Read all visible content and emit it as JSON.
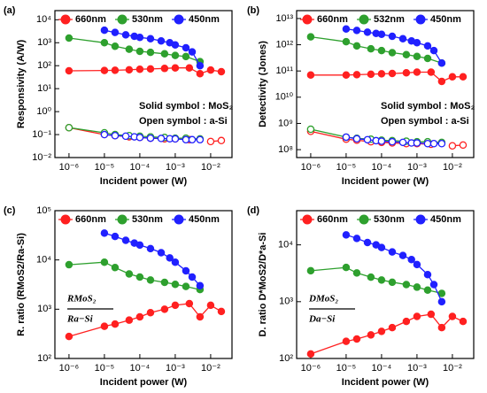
{
  "chart_data": [
    {
      "type": "line",
      "panel": "(a)",
      "y_label": "Responsivity (A/W)",
      "x_label": "Incident power (W)",
      "xscale": "log",
      "yscale": "log",
      "xlim": [
        4e-07,
        0.04
      ],
      "ylim": [
        0.01,
        25000.0
      ],
      "xticks": [
        {
          "value": 1e-06,
          "label": "10⁻⁶"
        },
        {
          "value": 1e-05,
          "label": "10⁻⁵"
        },
        {
          "value": 0.0001,
          "label": "10⁻⁴"
        },
        {
          "value": 0.001,
          "label": "10⁻³"
        },
        {
          "value": 0.01,
          "label": "10⁻²"
        }
      ],
      "yticks": [
        {
          "value": 0.01,
          "label": "10⁻²"
        },
        {
          "value": 0.1,
          "label": "10⁻¹"
        },
        {
          "value": 1,
          "label": "10⁰"
        },
        {
          "value": 10,
          "label": "10¹"
        },
        {
          "value": 100,
          "label": "10²"
        },
        {
          "value": 1000,
          "label": "10³"
        },
        {
          "value": 10000,
          "label": "10⁴"
        }
      ],
      "annotations": [
        "Solid symbol : MoS₂",
        "Open symbol : a-Si"
      ],
      "series": [
        {
          "name": "660nm",
          "color": "#ff2020",
          "x": [
            1e-06,
            1e-05,
            2e-05,
            5e-05,
            0.0001,
            0.0002,
            0.0005,
            0.001,
            0.0025,
            0.005,
            0.01,
            0.02
          ],
          "values": [
            60,
            62,
            63,
            66,
            70,
            72,
            76,
            80,
            80,
            45,
            65,
            55
          ],
          "asi_values": [
            0.2,
            0.1,
            0.09,
            0.08,
            0.075,
            0.07,
            0.065,
            0.065,
            0.06,
            null,
            0.05,
            0.055
          ]
        },
        {
          "name": "530nm",
          "color": "#2ea02e",
          "x": [
            1e-06,
            1e-05,
            2e-05,
            5e-05,
            0.0001,
            0.0002,
            0.0005,
            0.001,
            0.002,
            0.005
          ],
          "values": [
            1600,
            1000,
            700,
            520,
            420,
            380,
            330,
            280,
            250,
            150
          ],
          "asi_values": [
            0.2,
            0.12,
            0.1,
            0.09,
            0.085,
            0.08,
            0.075,
            0.07,
            0.07,
            0.065
          ]
        },
        {
          "name": "450nm",
          "color": "#2020ff",
          "x": [
            1e-05,
            2e-05,
            4e-05,
            7e-05,
            0.0001,
            0.0002,
            0.0004,
            0.0007,
            0.001,
            0.002,
            0.003,
            0.005
          ],
          "values": [
            3500,
            2800,
            2200,
            1900,
            1700,
            1500,
            1200,
            1000,
            800,
            600,
            400,
            100
          ],
          "asi_values": [
            0.1,
            0.09,
            0.085,
            0.08,
            0.075,
            0.07,
            0.068,
            0.066,
            0.065,
            0.06,
            0.06,
            0.06
          ]
        }
      ]
    },
    {
      "type": "line",
      "panel": "(b)",
      "y_label": "Detectivity (Jones)",
      "x_label": "Incident power (W)",
      "xscale": "log",
      "yscale": "log",
      "xlim": [
        4e-07,
        0.04
      ],
      "ylim": [
        50000000.0,
        20000000000000.0
      ],
      "xticks": [
        {
          "value": 1e-06,
          "label": "10⁻⁶"
        },
        {
          "value": 1e-05,
          "label": "10⁻⁵"
        },
        {
          "value": 0.0001,
          "label": "10⁻⁴"
        },
        {
          "value": 0.001,
          "label": "10⁻³"
        },
        {
          "value": 0.01,
          "label": "10⁻²"
        }
      ],
      "yticks": [
        {
          "value": 100000000.0,
          "label": "10⁸"
        },
        {
          "value": 1000000000.0,
          "label": "10⁹"
        },
        {
          "value": 10000000000.0,
          "label": "10¹⁰"
        },
        {
          "value": 100000000000.0,
          "label": "10¹¹"
        },
        {
          "value": 1000000000000.0,
          "label": "10¹²"
        },
        {
          "value": 10000000000000.0,
          "label": "10¹³"
        }
      ],
      "annotations": [
        "Solid symbol : MoS₂",
        "Open symbol : a-Si"
      ],
      "series": [
        {
          "name": "660nm",
          "color": "#ff2020",
          "x": [
            1e-06,
            1e-05,
            2e-05,
            5e-05,
            0.0001,
            0.0002,
            0.0005,
            0.001,
            0.0025,
            0.005,
            0.01,
            0.02
          ],
          "values": [
            70000000000.0,
            70000000000.0,
            72000000000.0,
            75000000000.0,
            78000000000.0,
            80000000000.0,
            85000000000.0,
            90000000000.0,
            90000000000.0,
            40000000000.0,
            60000000000.0,
            60000000000.0
          ],
          "asi_values": [
            500000000.0,
            250000000.0,
            230000000.0,
            200000000.0,
            190000000.0,
            180000000.0,
            170000000.0,
            170000000.0,
            160000000.0,
            null,
            140000000.0,
            150000000.0
          ]
        },
        {
          "name": "532nm",
          "color": "#2ea02e",
          "x": [
            1e-06,
            1e-05,
            2e-05,
            5e-05,
            0.0001,
            0.0002,
            0.0005,
            0.001,
            0.002,
            0.005
          ],
          "values": [
            2000000000000.0,
            1300000000000.0,
            900000000000.0,
            700000000000.0,
            600000000000.0,
            500000000000.0,
            420000000000.0,
            360000000000.0,
            300000000000.0,
            200000000000.0
          ],
          "asi_values": [
            600000000.0,
            300000000.0,
            270000000.0,
            250000000.0,
            230000000.0,
            220000000.0,
            210000000.0,
            200000000.0,
            200000000.0,
            190000000.0
          ]
        },
        {
          "name": "450nm",
          "color": "#2020ff",
          "x": [
            1e-05,
            2e-05,
            4e-05,
            7e-05,
            0.0001,
            0.0002,
            0.0004,
            0.0007,
            0.001,
            0.002,
            0.003,
            0.005
          ],
          "values": [
            4000000000000.0,
            3500000000000.0,
            3000000000000.0,
            2700000000000.0,
            2500000000000.0,
            2100000000000.0,
            1700000000000.0,
            1400000000000.0,
            1200000000000.0,
            900000000000.0,
            600000000000.0,
            200000000000.0
          ],
          "asi_values": [
            300000000.0,
            260000000.0,
            240000000.0,
            220000000.0,
            210000000.0,
            200000000.0,
            190000000.0,
            180000000.0,
            180000000.0,
            170000000.0,
            170000000.0,
            170000000.0
          ]
        }
      ]
    },
    {
      "type": "line",
      "panel": "(c)",
      "y_label": "R. ratio (RMoS2/Ra-Si)",
      "x_label": "Incident power (W)",
      "xscale": "log",
      "yscale": "log",
      "xlim": [
        4e-07,
        0.04
      ],
      "ylim": [
        100,
        100000.0
      ],
      "xticks": [
        {
          "value": 1e-06,
          "label": "10⁻⁶"
        },
        {
          "value": 1e-05,
          "label": "10⁻⁵"
        },
        {
          "value": 0.0001,
          "label": "10⁻⁴"
        },
        {
          "value": 0.001,
          "label": "10⁻³"
        },
        {
          "value": 0.01,
          "label": "10⁻²"
        }
      ],
      "yticks": [
        {
          "value": 100,
          "label": "10²"
        },
        {
          "value": 1000,
          "label": "10³"
        },
        {
          "value": 10000,
          "label": "10⁴"
        },
        {
          "value": 100000,
          "label": "10⁵"
        }
      ],
      "fraction": {
        "numerator": "RMoS₂",
        "denominator": "Ra−Si"
      },
      "series": [
        {
          "name": "660nm",
          "color": "#ff2020",
          "x": [
            1e-06,
            1e-05,
            2e-05,
            5e-05,
            0.0001,
            0.0002,
            0.0005,
            0.001,
            0.0025,
            0.005,
            0.01,
            0.02
          ],
          "values": [
            280,
            450,
            500,
            600,
            700,
            850,
            1000,
            1200,
            1300,
            700,
            1200,
            900
          ]
        },
        {
          "name": "530nm",
          "color": "#2ea02e",
          "x": [
            1e-06,
            1e-05,
            2e-05,
            5e-05,
            0.0001,
            0.0002,
            0.0005,
            0.001,
            0.002,
            0.005
          ],
          "values": [
            8000,
            9000,
            7000,
            5200,
            4500,
            3900,
            3500,
            3200,
            2900,
            2500
          ]
        },
        {
          "name": "450nm",
          "color": "#2020ff",
          "x": [
            1e-05,
            2e-05,
            4e-05,
            7e-05,
            0.0001,
            0.0002,
            0.0004,
            0.0007,
            0.001,
            0.002,
            0.003,
            0.005
          ],
          "values": [
            35000,
            30000,
            25000,
            22000,
            20000,
            17000,
            14000,
            11000,
            9000,
            6000,
            4500,
            3000
          ]
        }
      ]
    },
    {
      "type": "line",
      "panel": "(d)",
      "y_label": "D. ratio D*MoS2/D*a-Si",
      "x_label": "Incident power (W)",
      "xscale": "log",
      "yscale": "log",
      "xlim": [
        4e-07,
        0.04
      ],
      "ylim": [
        100,
        40000.0
      ],
      "xticks": [
        {
          "value": 1e-06,
          "label": "10⁻⁶"
        },
        {
          "value": 1e-05,
          "label": "10⁻⁵"
        },
        {
          "value": 0.0001,
          "label": "10⁻⁴"
        },
        {
          "value": 0.001,
          "label": "10⁻³"
        },
        {
          "value": 0.01,
          "label": "10⁻²"
        }
      ],
      "yticks": [
        {
          "value": 100,
          "label": "10²"
        },
        {
          "value": 1000,
          "label": "10³"
        },
        {
          "value": 10000,
          "label": "10⁴"
        }
      ],
      "fraction": {
        "numerator": "DMoS₂",
        "denominator": "Da−Si"
      },
      "series": [
        {
          "name": "660nm",
          "color": "#ff2020",
          "x": [
            1e-06,
            1e-05,
            2e-05,
            5e-05,
            0.0001,
            0.0002,
            0.0005,
            0.001,
            0.0025,
            0.005,
            0.01,
            0.02
          ],
          "values": [
            120,
            200,
            220,
            260,
            300,
            350,
            450,
            550,
            600,
            350,
            550,
            450
          ]
        },
        {
          "name": "530nm",
          "color": "#2ea02e",
          "x": [
            1e-06,
            1e-05,
            2e-05,
            5e-05,
            0.0001,
            0.0002,
            0.0005,
            0.001,
            0.002,
            0.005
          ],
          "values": [
            3500,
            4000,
            3200,
            2700,
            2400,
            2200,
            2000,
            1800,
            1600,
            1400
          ]
        },
        {
          "name": "450nm",
          "color": "#2020ff",
          "x": [
            1e-05,
            2e-05,
            4e-05,
            7e-05,
            0.0001,
            0.0002,
            0.0004,
            0.0007,
            0.001,
            0.002,
            0.003,
            0.005
          ],
          "values": [
            15000,
            13000,
            11000,
            10000,
            9000,
            7500,
            6500,
            5500,
            4500,
            3000,
            2000,
            1000
          ]
        }
      ]
    }
  ]
}
